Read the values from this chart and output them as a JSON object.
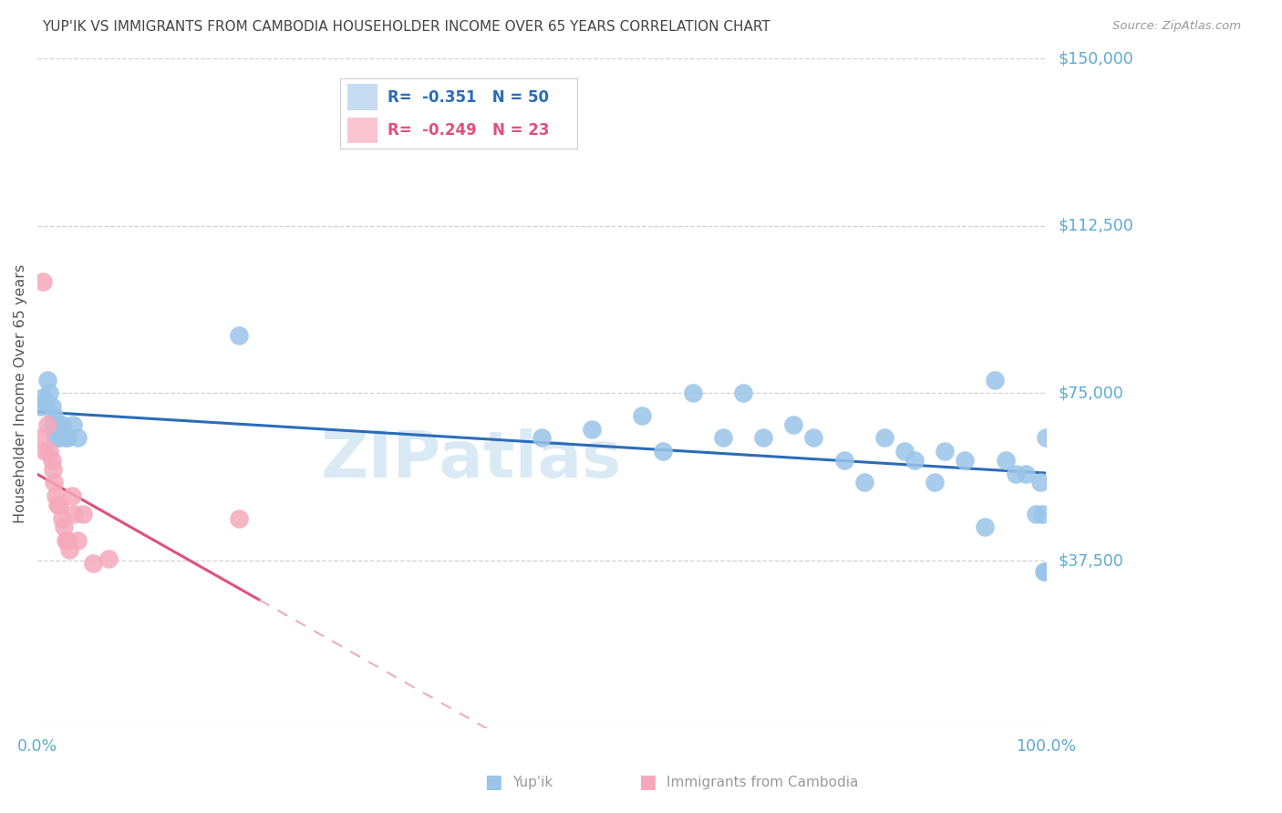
{
  "title": "YUP'IK VS IMMIGRANTS FROM CAMBODIA HOUSEHOLDER INCOME OVER 65 YEARS CORRELATION CHART",
  "source": "Source: ZipAtlas.com",
  "ylabel": "Householder Income Over 65 years",
  "xlim": [
    0,
    100
  ],
  "ylim": [
    0,
    150000
  ],
  "yticks": [
    0,
    37500,
    75000,
    112500,
    150000
  ],
  "ytick_labels": [
    "",
    "$37,500",
    "$75,000",
    "$112,500",
    "$150,000"
  ],
  "grid_color": "#cccccc",
  "background_color": "#ffffff",
  "series1_color": "#99C4E8",
  "series2_color": "#F5A8BB",
  "series1_line_color": "#2B6CB8",
  "series2_line_color": "#E0507A",
  "series2_dash_color": "#F0AABF",
  "title_color": "#444444",
  "ytick_color": "#5BAAD4",
  "xtick_color": "#5BAAD4",
  "legend_color1": "#C5DCF2",
  "legend_color2": "#FAC5D0",
  "legend_text_color1": "#2B6CB8",
  "legend_text_color2": "#E0507A",
  "watermark_color": "#daeaf5",
  "bottom_legend_color": "#999999",
  "yupik_x": [
    0.3,
    0.5,
    0.8,
    1.0,
    1.2,
    1.4,
    1.5,
    1.6,
    1.7,
    1.8,
    1.9,
    2.0,
    2.1,
    2.2,
    2.4,
    2.6,
    2.8,
    3.0,
    3.5,
    4.0,
    20.0,
    50.0,
    55.0,
    60.0,
    62.0,
    65.0,
    68.0,
    70.0,
    72.0,
    75.0,
    77.0,
    80.0,
    82.0,
    84.0,
    86.0,
    87.0,
    89.0,
    90.0,
    92.0,
    94.0,
    95.0,
    96.0,
    97.0,
    98.0,
    99.0,
    99.5,
    99.7,
    99.8,
    99.9,
    100.0
  ],
  "yupik_y": [
    72000,
    74000,
    73000,
    78000,
    75000,
    72000,
    68000,
    70000,
    65000,
    68000,
    66000,
    67000,
    65000,
    65000,
    68000,
    66000,
    65000,
    65000,
    68000,
    65000,
    88000,
    65000,
    67000,
    70000,
    62000,
    75000,
    65000,
    75000,
    65000,
    68000,
    65000,
    60000,
    55000,
    65000,
    62000,
    60000,
    55000,
    62000,
    60000,
    45000,
    78000,
    60000,
    57000,
    57000,
    48000,
    55000,
    48000,
    35000,
    35000,
    65000
  ],
  "cambodia_x": [
    0.3,
    0.5,
    0.7,
    1.0,
    1.2,
    1.4,
    1.5,
    1.6,
    1.8,
    2.0,
    2.2,
    2.4,
    2.6,
    2.8,
    3.0,
    3.2,
    3.4,
    3.6,
    4.0,
    4.5,
    5.5,
    7.0,
    20.0
  ],
  "cambodia_y": [
    65000,
    100000,
    62000,
    68000,
    62000,
    60000,
    58000,
    55000,
    52000,
    50000,
    50000,
    47000,
    45000,
    42000,
    42000,
    40000,
    52000,
    48000,
    42000,
    48000,
    37000,
    38000,
    47000
  ]
}
